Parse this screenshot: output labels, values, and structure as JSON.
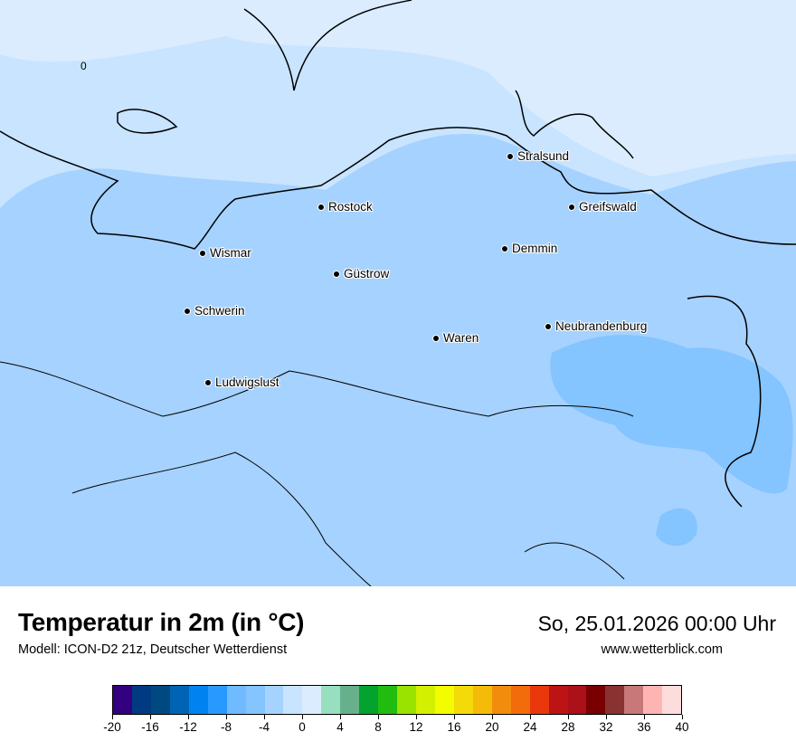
{
  "header": {
    "title": "Temperatur in 2m (in °C)",
    "subtitle": "Modell: ICON-D2 21z, Deutscher Wetterdienst",
    "datetime": "So, 25.01.2026 00:00 Uhr",
    "site": "www.wetterblick.com"
  },
  "map": {
    "contour_label": "0",
    "cities": [
      {
        "name": "Stralsund"
      },
      {
        "name": "Rostock"
      },
      {
        "name": "Greifswald"
      },
      {
        "name": "Wismar"
      },
      {
        "name": "Demmin"
      },
      {
        "name": "Güstrow"
      },
      {
        "name": "Schwerin"
      },
      {
        "name": "Neubrandenburg"
      },
      {
        "name": "Waren"
      },
      {
        "name": "Ludwigslust"
      }
    ],
    "colors": {
      "lightest": "#dbecff",
      "light": "#c8e4ff",
      "base": "#a6d2ff",
      "dark": "#84c4ff"
    }
  },
  "legend": {
    "unit": "°C",
    "min": -20,
    "max": 40,
    "step": 2,
    "tick_labels": [
      "-20",
      "-16",
      "-12",
      "-8",
      "-4",
      "0",
      "4",
      "8",
      "12",
      "16",
      "20",
      "24",
      "28",
      "32",
      "36",
      "40"
    ],
    "colors": [
      "#330080",
      "#003a80",
      "#004880",
      "#0064b4",
      "#0082f0",
      "#2899ff",
      "#70baff",
      "#84c4ff",
      "#a6d2ff",
      "#c8e4ff",
      "#dbecff",
      "#98dfc0",
      "#66b08c",
      "#04a22e",
      "#20bc10",
      "#9ae200",
      "#d2f000",
      "#f4fc00",
      "#f4da08",
      "#f4bc08",
      "#f28c0c",
      "#f26c0c",
      "#e8380c",
      "#bc1414",
      "#ac1018",
      "#780000",
      "#8a3232",
      "#c87878",
      "#ffb4b4",
      "#ffdcdc"
    ]
  }
}
